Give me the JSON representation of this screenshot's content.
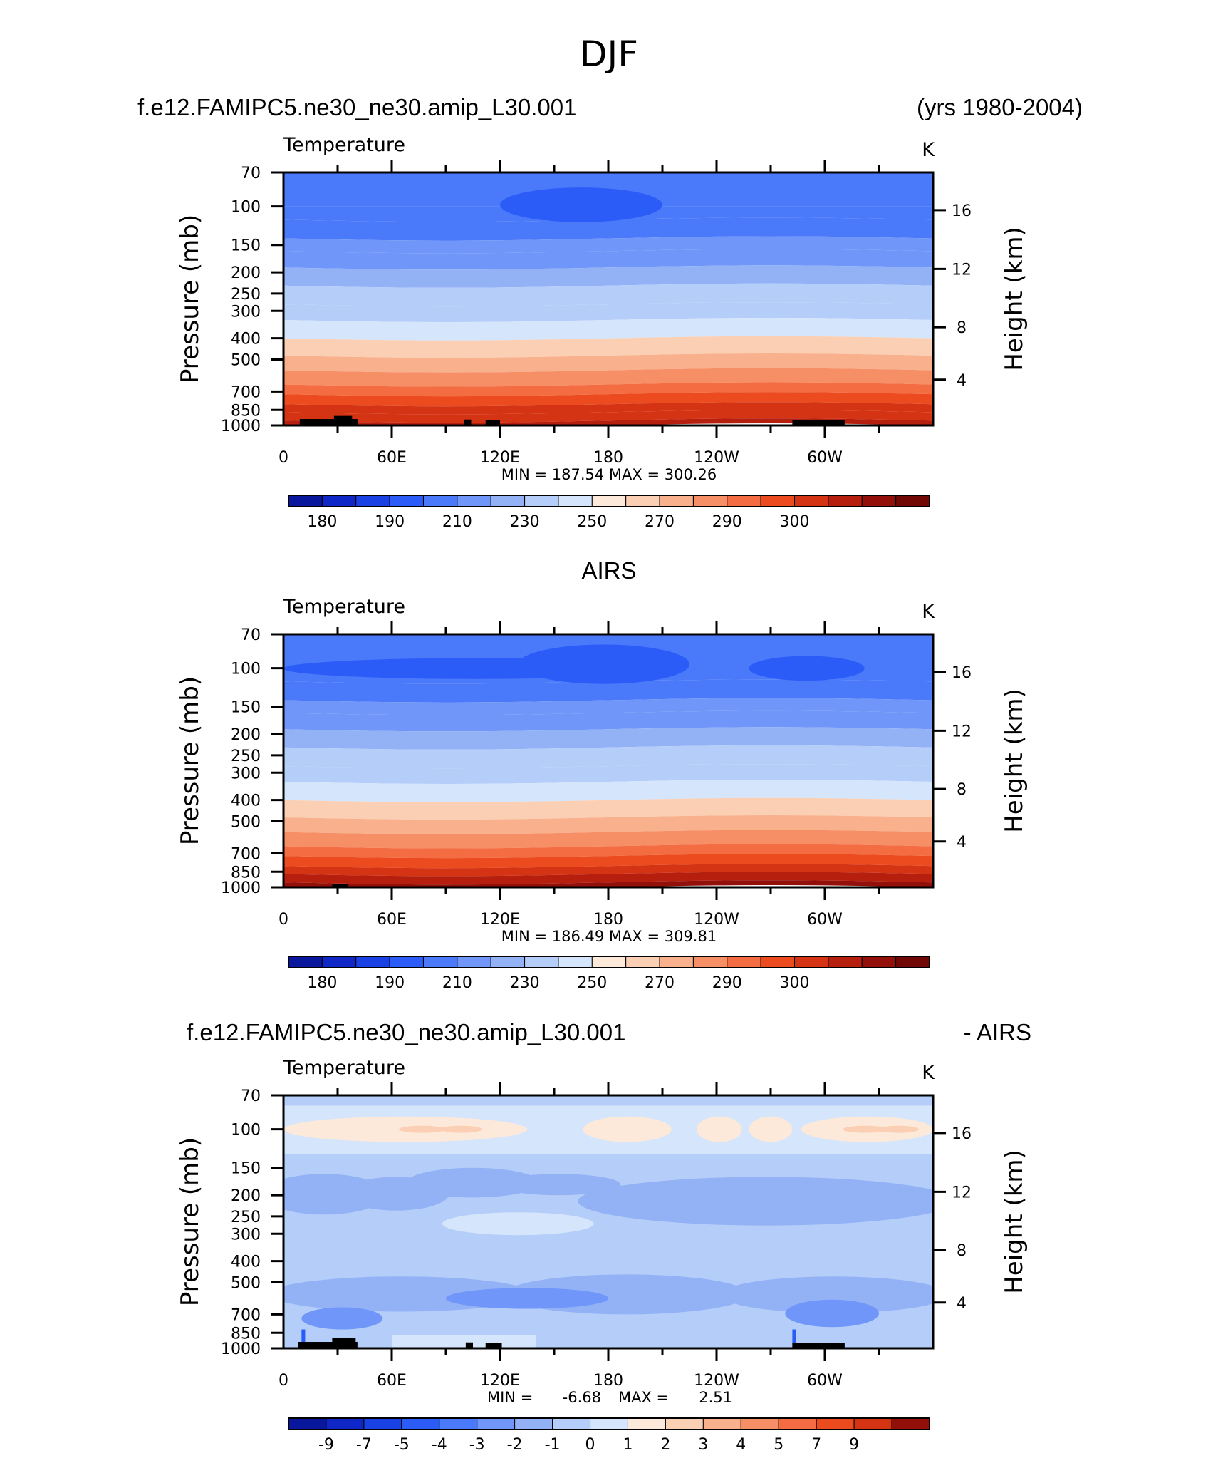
{
  "page": {
    "title": "DJF",
    "run_title": "f.e12.FAMIPC5.ne30_ne30.amip_L30.001",
    "years": "(yrs 1980-2004)",
    "obs_title": "AIRS",
    "diff_title": "f.e12.FAMIPC5.ne30_ne30.amip_L30.001",
    "diff_suffix": "- AIRS"
  },
  "colors": {
    "temp_palette": [
      "#08179c",
      "#0e27c6",
      "#1a41e4",
      "#2b5cf7",
      "#4a79fa",
      "#6f96f8",
      "#93b2f6",
      "#b5cdf9",
      "#d5e5fb",
      "#fde9da",
      "#fbcfb4",
      "#f8b08d",
      "#f68e66",
      "#f36c42",
      "#eb4b1e",
      "#d43314",
      "#b61e0e",
      "#93100a",
      "#720806"
    ],
    "diff_palette": [
      "#08179c",
      "#0e27c6",
      "#1a41e4",
      "#2b5cf7",
      "#4a79fa",
      "#6f96f8",
      "#93b2f6",
      "#b5cdf9",
      "#d5e5fb",
      "#fde9da",
      "#fbcfb4",
      "#f8b08d",
      "#f68e66",
      "#f36c42",
      "#eb4b1e",
      "#d43314",
      "#93100a"
    ]
  },
  "chart_data": [
    {
      "type": "contour",
      "panel_title": "f.e12.FAMIPC5.ne30_ne30.amip_L30.001",
      "variable": "Temperature",
      "units": "K",
      "xlabel": "",
      "ylabel": "Pressure (mb)",
      "ylabel_right": "Height (km)",
      "x_ticks": [
        "0",
        "60E",
        "120E",
        "180",
        "120W",
        "60W"
      ],
      "x_range": [
        0,
        360
      ],
      "y_ticks": [
        "70",
        "100",
        "150",
        "200",
        "250",
        "300",
        "400",
        "500",
        "700",
        "850",
        "1000"
      ],
      "y_range": [
        70,
        1000
      ],
      "right_ticks": [
        "16",
        "12",
        "8",
        "4"
      ],
      "stats": "MIN = 187.54   MAX = 300.26",
      "colorbar_labels": [
        "180",
        "190",
        "210",
        "230",
        "250",
        "270",
        "290",
        "300"
      ],
      "levels": [
        180,
        185,
        190,
        200,
        210,
        220,
        230,
        240,
        250,
        255,
        260,
        265,
        270,
        275,
        280,
        285,
        290,
        295,
        300
      ],
      "bands": [
        {
          "p": 70,
          "T": 208
        },
        {
          "p": 90,
          "T": 206
        },
        {
          "p": 100,
          "T": 204
        },
        {
          "p": 115,
          "T": 206
        },
        {
          "p": 140,
          "T": 212
        },
        {
          "p": 160,
          "T": 216
        },
        {
          "p": 190,
          "T": 220
        },
        {
          "p": 230,
          "T": 226
        },
        {
          "p": 280,
          "T": 234
        },
        {
          "p": 330,
          "T": 243
        },
        {
          "p": 400,
          "T": 252
        },
        {
          "p": 480,
          "T": 260
        },
        {
          "p": 560,
          "T": 266
        },
        {
          "p": 650,
          "T": 272
        },
        {
          "p": 720,
          "T": 276
        },
        {
          "p": 800,
          "T": 280
        },
        {
          "p": 870,
          "T": 283
        },
        {
          "p": 950,
          "T": 286
        },
        {
          "p": 1000,
          "T": 287
        }
      ],
      "cold_pockets": [
        {
          "lon_start": 120,
          "lon_end": 210,
          "p_top": 82,
          "p_bot": 118,
          "T": 196
        }
      ]
    },
    {
      "type": "contour",
      "panel_title": "AIRS",
      "variable": "Temperature",
      "units": "K",
      "xlabel": "",
      "ylabel": "Pressure (mb)",
      "ylabel_right": "Height (km)",
      "x_ticks": [
        "0",
        "60E",
        "120E",
        "180",
        "120W",
        "60W"
      ],
      "x_range": [
        0,
        360
      ],
      "y_ticks": [
        "70",
        "100",
        "150",
        "200",
        "250",
        "300",
        "400",
        "500",
        "700",
        "850",
        "1000"
      ],
      "y_range": [
        70,
        1000
      ],
      "right_ticks": [
        "16",
        "12",
        "8",
        "4"
      ],
      "stats": "MIN = 186.49   MAX = 309.81",
      "colorbar_labels": [
        "180",
        "190",
        "210",
        "230",
        "250",
        "270",
        "290",
        "300"
      ],
      "levels": [
        180,
        185,
        190,
        200,
        210,
        220,
        230,
        240,
        250,
        255,
        260,
        265,
        270,
        275,
        280,
        285,
        290,
        295,
        300
      ],
      "bands": [
        {
          "p": 70,
          "T": 208
        },
        {
          "p": 90,
          "T": 206
        },
        {
          "p": 100,
          "T": 204
        },
        {
          "p": 115,
          "T": 206
        },
        {
          "p": 140,
          "T": 212
        },
        {
          "p": 160,
          "T": 216
        },
        {
          "p": 190,
          "T": 220
        },
        {
          "p": 230,
          "T": 226
        },
        {
          "p": 280,
          "T": 234
        },
        {
          "p": 330,
          "T": 243
        },
        {
          "p": 400,
          "T": 252
        },
        {
          "p": 480,
          "T": 260
        },
        {
          "p": 560,
          "T": 266
        },
        {
          "p": 650,
          "T": 272
        },
        {
          "p": 720,
          "T": 276
        },
        {
          "p": 800,
          "T": 280
        },
        {
          "p": 870,
          "T": 284
        },
        {
          "p": 950,
          "T": 290
        },
        {
          "p": 1000,
          "T": 295
        }
      ],
      "cold_pockets": [
        {
          "lon_start": 0,
          "lon_end": 210,
          "p_top": 90,
          "p_bot": 112,
          "T": 196
        },
        {
          "lon_start": 130,
          "lon_end": 225,
          "p_top": 78,
          "p_bot": 118,
          "T": 196
        },
        {
          "lon_start": 258,
          "lon_end": 322,
          "p_top": 88,
          "p_bot": 114,
          "T": 196
        }
      ]
    },
    {
      "type": "contour",
      "panel_title": "f.e12.FAMIPC5.ne30_ne30.amip_L30.001 - AIRS",
      "variable": "Temperature",
      "units": "K",
      "xlabel": "",
      "ylabel": "Pressure (mb)",
      "ylabel_right": "Height (km)",
      "x_ticks": [
        "0",
        "60E",
        "120E",
        "180",
        "120W",
        "60W"
      ],
      "x_range": [
        0,
        360
      ],
      "y_ticks": [
        "70",
        "100",
        "150",
        "200",
        "250",
        "300",
        "400",
        "500",
        "700",
        "850",
        "1000"
      ],
      "y_range": [
        70,
        1000
      ],
      "right_ticks": [
        "16",
        "12",
        "8",
        "4"
      ],
      "stats_min_label": "MIN =",
      "stats_min": "-6.68",
      "stats_max_label": "MAX =",
      "stats_max": "2.51",
      "colorbar_labels": [
        "-9",
        "-7",
        "-5",
        "-4",
        "-3",
        "-2",
        "-1",
        "0",
        "1",
        "2",
        "3",
        "4",
        "5",
        "7",
        "9"
      ],
      "levels": [
        -9,
        -7,
        -5,
        -4,
        -3,
        -2,
        -1,
        0,
        1,
        2,
        3,
        4,
        5,
        7,
        9
      ]
    }
  ]
}
